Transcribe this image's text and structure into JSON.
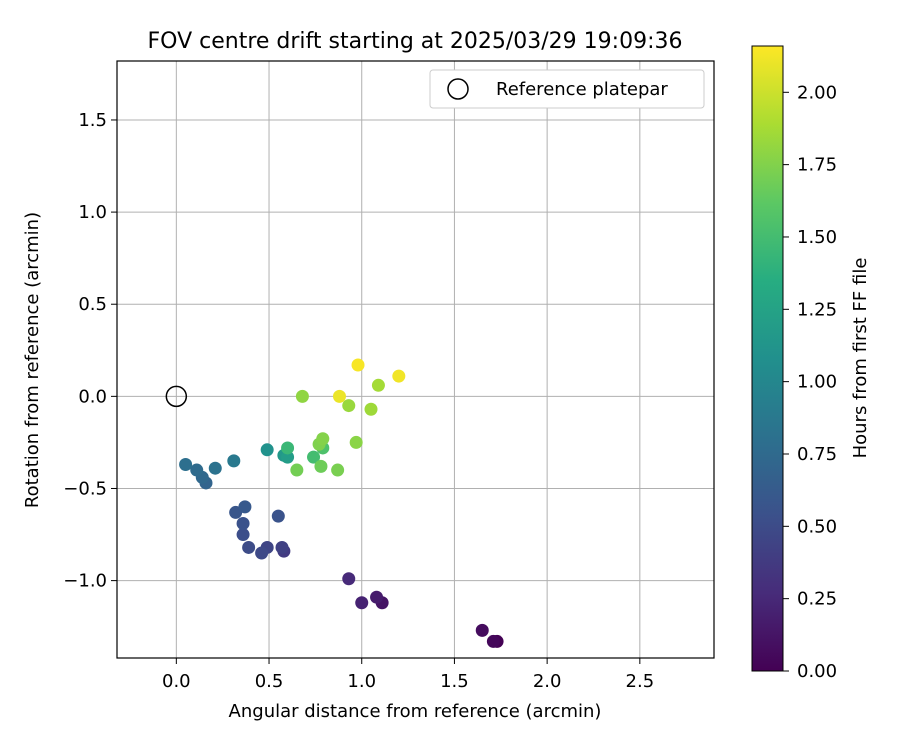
{
  "chart_data": {
    "type": "scatter",
    "title": "FOV centre drift starting at 2025/03/29 19:09:36",
    "xlabel": "Angular distance from reference (arcmin)",
    "ylabel": "Rotation from reference (arcmin)",
    "xlim": [
      -0.32,
      2.9
    ],
    "ylim": [
      -1.42,
      1.82
    ],
    "x_ticks": [
      0.0,
      0.5,
      1.0,
      1.5,
      2.0,
      2.5
    ],
    "x_tick_labels": [
      "0.0",
      "0.5",
      "1.0",
      "1.5",
      "2.0",
      "2.5"
    ],
    "y_ticks": [
      -1.0,
      -0.5,
      0.0,
      0.5,
      1.0,
      1.5
    ],
    "y_tick_labels": [
      "−1.0",
      "−0.5",
      "0.0",
      "0.5",
      "1.0",
      "1.5"
    ],
    "grid": true,
    "legend": {
      "placement": "top-right",
      "entries": [
        {
          "label": "Reference platepar",
          "marker": "open-circle",
          "x": 0.0,
          "y": 0.0
        }
      ]
    },
    "colorbar": {
      "label": "Hours from first FF file",
      "colormap": "viridis",
      "range": [
        0.0,
        2.16
      ],
      "ticks": [
        0.0,
        0.25,
        0.5,
        0.75,
        1.0,
        1.25,
        1.5,
        1.75,
        2.0
      ],
      "tick_labels": [
        "0.00",
        "0.25",
        "0.50",
        "0.75",
        "1.00",
        "1.25",
        "1.50",
        "1.75",
        "2.00"
      ]
    },
    "series": [
      {
        "points": [
          {
            "x": 1.73,
            "y": -1.33,
            "c": 0.0
          },
          {
            "x": 1.71,
            "y": -1.33,
            "c": 0.04
          },
          {
            "x": 1.65,
            "y": -1.27,
            "c": 0.07
          },
          {
            "x": 1.11,
            "y": -1.12,
            "c": 0.12
          },
          {
            "x": 1.08,
            "y": -1.09,
            "c": 0.17
          },
          {
            "x": 1.0,
            "y": -1.12,
            "c": 0.21
          },
          {
            "x": 0.93,
            "y": -0.99,
            "c": 0.26
          },
          {
            "x": 0.58,
            "y": -0.84,
            "c": 0.38
          },
          {
            "x": 0.57,
            "y": -0.82,
            "c": 0.42
          },
          {
            "x": 0.49,
            "y": -0.82,
            "c": 0.45
          },
          {
            "x": 0.46,
            "y": -0.85,
            "c": 0.48
          },
          {
            "x": 0.39,
            "y": -0.82,
            "c": 0.5
          },
          {
            "x": 0.36,
            "y": -0.75,
            "c": 0.52
          },
          {
            "x": 0.36,
            "y": -0.69,
            "c": 0.55
          },
          {
            "x": 0.32,
            "y": -0.63,
            "c": 0.58
          },
          {
            "x": 0.37,
            "y": -0.6,
            "c": 0.61
          },
          {
            "x": 0.55,
            "y": -0.65,
            "c": 0.56
          },
          {
            "x": 0.16,
            "y": -0.47,
            "c": 0.7
          },
          {
            "x": 0.14,
            "y": -0.44,
            "c": 0.73
          },
          {
            "x": 0.11,
            "y": -0.4,
            "c": 0.76
          },
          {
            "x": 0.05,
            "y": -0.37,
            "c": 0.79
          },
          {
            "x": 0.21,
            "y": -0.39,
            "c": 0.82
          },
          {
            "x": 0.31,
            "y": -0.35,
            "c": 0.88
          },
          {
            "x": 0.49,
            "y": -0.29,
            "c": 1.1
          },
          {
            "x": 0.58,
            "y": -0.32,
            "c": 1.15
          },
          {
            "x": 0.6,
            "y": -0.33,
            "c": 1.2
          },
          {
            "x": 0.6,
            "y": -0.28,
            "c": 1.45
          },
          {
            "x": 0.74,
            "y": -0.33,
            "c": 1.5
          },
          {
            "x": 0.79,
            "y": -0.28,
            "c": 1.55
          },
          {
            "x": 0.78,
            "y": -0.38,
            "c": 1.68
          },
          {
            "x": 0.65,
            "y": -0.4,
            "c": 1.7
          },
          {
            "x": 0.87,
            "y": -0.4,
            "c": 1.72
          },
          {
            "x": 0.77,
            "y": -0.26,
            "c": 1.74
          },
          {
            "x": 0.79,
            "y": -0.23,
            "c": 1.76
          },
          {
            "x": 0.97,
            "y": -0.25,
            "c": 1.78
          },
          {
            "x": 0.68,
            "y": 0.0,
            "c": 1.8
          },
          {
            "x": 0.93,
            "y": -0.05,
            "c": 1.83
          },
          {
            "x": 1.05,
            "y": -0.07,
            "c": 1.85
          },
          {
            "x": 1.09,
            "y": 0.06,
            "c": 1.87
          },
          {
            "x": 0.88,
            "y": 0.0,
            "c": 2.1
          },
          {
            "x": 0.98,
            "y": 0.17,
            "c": 2.14
          },
          {
            "x": 1.2,
            "y": 0.11,
            "c": 2.12
          }
        ]
      }
    ]
  }
}
